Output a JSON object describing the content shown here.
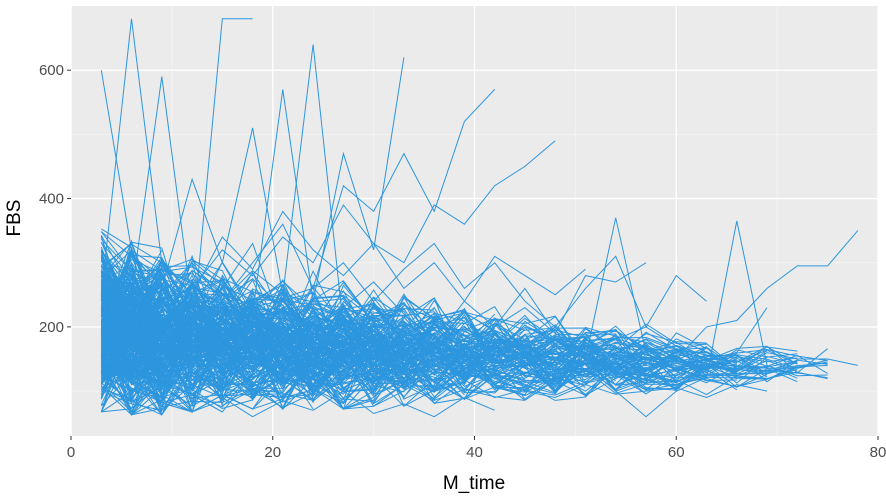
{
  "chart_data": {
    "type": "line",
    "title": "",
    "xlabel": "M_time",
    "ylabel": "FBS",
    "xlim": [
      0,
      80
    ],
    "ylim": [
      30,
      700
    ],
    "x_ticks": [
      0,
      20,
      40,
      60,
      80
    ],
    "y_ticks": [
      200,
      400,
      600
    ],
    "x_tick_labels": [
      "0",
      "20",
      "40",
      "60",
      "80"
    ],
    "y_tick_labels": [
      "200",
      "400",
      "600"
    ],
    "grid": true,
    "legend": "none",
    "colors": {
      "line": "#2C96DE",
      "panel": "#EBEBEB",
      "grid_major": "#FFFFFF",
      "grid_minor": "#F5F5F5"
    },
    "series": [
      {
        "x": [
          3,
          6,
          9,
          12,
          15,
          18
        ],
        "y": [
          600,
          320,
          210,
          180,
          680,
          680
        ]
      },
      {
        "x": [
          3,
          6,
          9,
          12,
          15,
          18,
          21,
          24
        ],
        "y": [
          250,
          680,
          300,
          220,
          260,
          330,
          200,
          180
        ]
      },
      {
        "x": [
          3,
          6,
          9,
          12,
          15,
          18,
          21,
          24,
          27
        ],
        "y": [
          180,
          250,
          590,
          230,
          300,
          510,
          250,
          640,
          200
        ]
      },
      {
        "x": [
          3,
          6,
          9,
          12,
          15,
          18,
          21,
          24,
          27,
          30,
          33
        ],
        "y": [
          140,
          200,
          260,
          430,
          300,
          220,
          570,
          240,
          470,
          320,
          620
        ]
      },
      {
        "x": [
          3,
          6,
          9,
          12,
          15,
          18,
          21,
          24,
          27,
          30,
          33,
          36,
          39,
          42
        ],
        "y": [
          160,
          190,
          250,
          300,
          240,
          300,
          360,
          260,
          420,
          380,
          470,
          380,
          520,
          570
        ]
      },
      {
        "x": [
          3,
          6,
          9,
          12,
          15,
          18,
          21,
          24,
          27,
          30,
          33,
          36,
          39,
          42,
          45,
          48
        ],
        "y": [
          170,
          230,
          200,
          260,
          320,
          280,
          340,
          300,
          390,
          330,
          300,
          390,
          360,
          420,
          450,
          490
        ]
      },
      {
        "x": [
          6,
          9,
          12,
          15,
          18,
          21,
          24,
          27,
          30,
          33,
          36,
          39,
          42,
          45,
          48,
          51
        ],
        "y": [
          200,
          300,
          250,
          340,
          290,
          380,
          320,
          280,
          330,
          260,
          300,
          240,
          310,
          280,
          250,
          290
        ]
      },
      {
        "x": [
          3,
          6,
          9,
          12,
          15,
          18,
          21,
          24,
          27,
          30,
          33,
          36,
          39,
          42,
          45,
          48,
          51,
          54,
          57
        ],
        "y": [
          190,
          210,
          170,
          220,
          200,
          180,
          230,
          190,
          210,
          170,
          200,
          220,
          180,
          200,
          230,
          190,
          280,
          270,
          300
        ]
      },
      {
        "x": [
          24,
          27,
          30,
          33,
          36,
          39,
          42,
          45,
          48,
          51,
          54,
          57,
          60,
          63
        ],
        "y": [
          260,
          300,
          240,
          290,
          330,
          260,
          300,
          240,
          200,
          260,
          310,
          200,
          280,
          240
        ]
      },
      {
        "x": [
          27,
          30,
          33,
          36,
          39,
          42,
          45,
          48,
          51,
          54,
          57,
          60,
          63,
          66,
          69
        ],
        "y": [
          230,
          270,
          220,
          180,
          240,
          200,
          260,
          190,
          160,
          180,
          200,
          170,
          150,
          160,
          230
        ]
      },
      {
        "x": [
          39,
          42,
          45,
          48,
          51,
          54,
          57,
          60,
          63,
          66,
          69,
          72,
          75,
          78
        ],
        "y": [
          160,
          180,
          170,
          200,
          150,
          160,
          180,
          150,
          200,
          210,
          260,
          295,
          295,
          350
        ]
      },
      {
        "x": [
          45,
          48,
          51,
          54,
          57,
          60,
          63,
          66,
          69,
          72
        ],
        "y": [
          200,
          180,
          160,
          170,
          140,
          150,
          120,
          365,
          140,
          120
        ]
      },
      {
        "x": [
          48,
          51,
          54,
          57,
          60,
          63,
          66,
          69,
          72,
          75,
          78
        ],
        "y": [
          170,
          150,
          370,
          160,
          170,
          140,
          130,
          160,
          150,
          150,
          140
        ]
      },
      {
        "x": [
          3,
          6,
          9,
          12,
          15,
          18,
          21,
          24,
          27,
          30,
          33,
          36,
          39,
          42
        ],
        "y": [
          100,
          80,
          70,
          110,
          90,
          60,
          85,
          70,
          100,
          65,
          80,
          60,
          90,
          70
        ]
      },
      {
        "x": [
          42,
          45,
          48,
          51,
          54,
          57,
          60,
          63,
          66,
          69
        ],
        "y": [
          120,
          100,
          90,
          110,
          95,
          100,
          105,
          90,
          110,
          100
        ]
      },
      {
        "x": [
          51,
          54,
          57,
          60
        ],
        "y": [
          140,
          100,
          60,
          100
        ]
      }
    ],
    "band": {
      "x": [
        3,
        6,
        9,
        12,
        15,
        18,
        21,
        24,
        27,
        30,
        33,
        36,
        39,
        42,
        45,
        48,
        51,
        54,
        57,
        60,
        63,
        66,
        69,
        72,
        75,
        78
      ],
      "y_low": [
        75,
        70,
        70,
        75,
        75,
        80,
        80,
        80,
        80,
        85,
        85,
        90,
        90,
        95,
        95,
        95,
        100,
        100,
        100,
        105,
        105,
        105,
        110,
        115,
        120,
        125
      ],
      "y_high": [
        320,
        310,
        300,
        290,
        280,
        270,
        260,
        255,
        250,
        240,
        235,
        230,
        220,
        215,
        210,
        205,
        195,
        190,
        185,
        180,
        175,
        170,
        165,
        160,
        160,
        155
      ],
      "line_count": 400
    }
  }
}
